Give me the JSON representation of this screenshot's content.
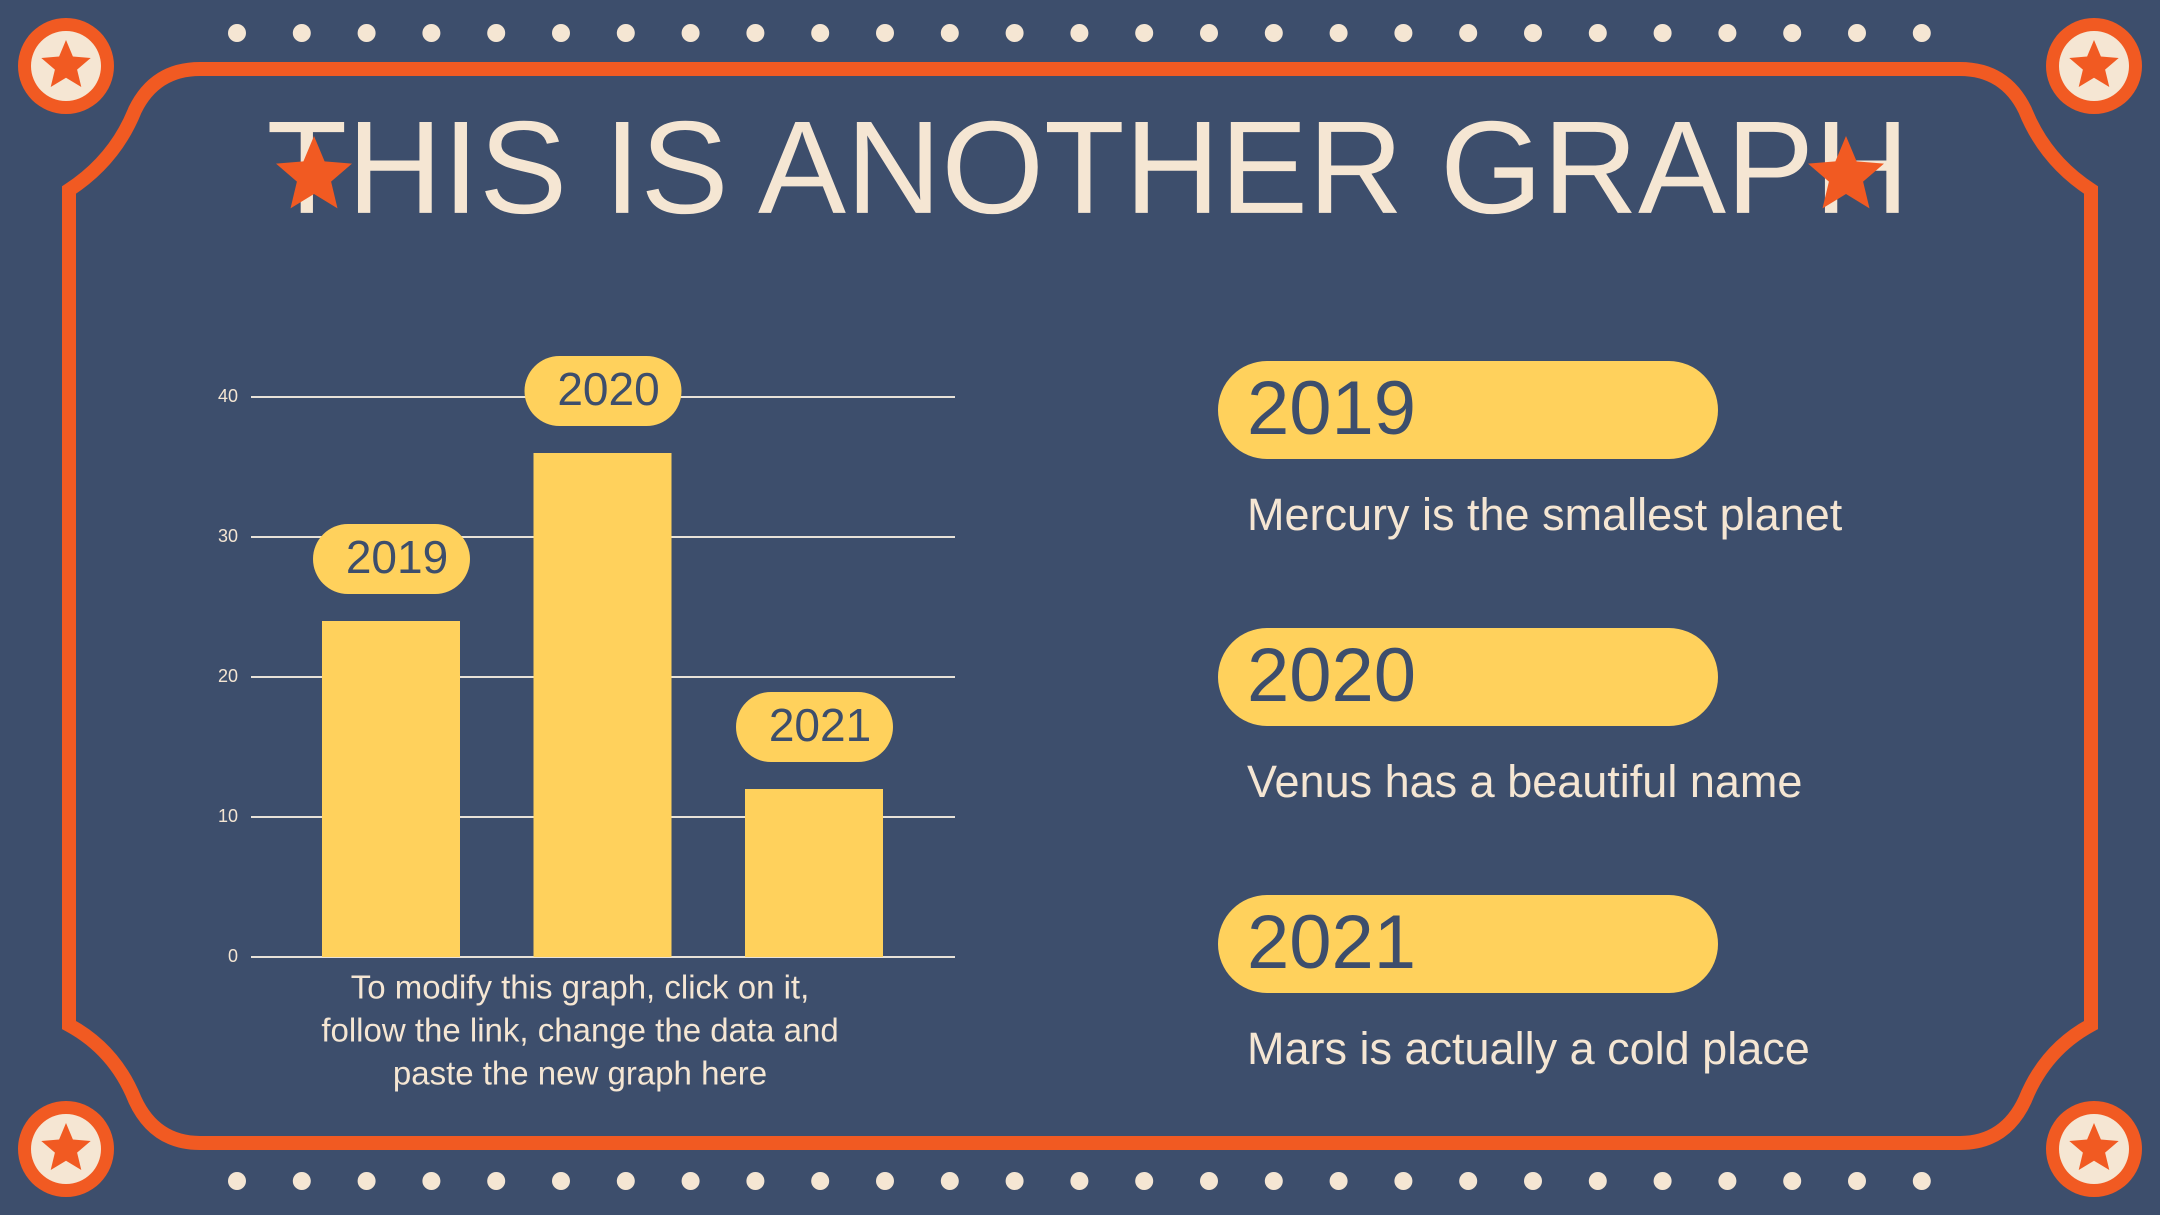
{
  "title": "THIS IS ANOTHER GRAPH",
  "chart_data": {
    "type": "bar",
    "categories": [
      "2019",
      "2020",
      "2021"
    ],
    "values": [
      24,
      36,
      12
    ],
    "color": "#ffd15c",
    "ylim": [
      0,
      40
    ],
    "yticks": [
      0,
      10,
      20,
      30,
      40
    ],
    "grid": true
  },
  "note": [
    "To modify this graph, click on it,",
    "follow the link, change the data and",
    "paste the new graph here"
  ],
  "items": [
    {
      "year": "2019",
      "text": "Mercury is the smallest planet"
    },
    {
      "year": "2020",
      "text": "Venus has a beautiful name"
    },
    {
      "year": "2021",
      "text": "Mars is actually a cold place"
    }
  ]
}
